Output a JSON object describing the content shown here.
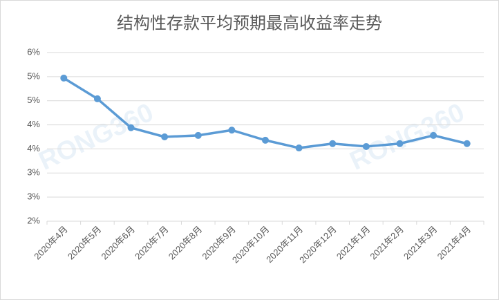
{
  "chart_data": {
    "type": "line",
    "title": "结构性存款平均预期最高收益率走势",
    "watermark": "RONG360",
    "categories": [
      "2020年4月",
      "2020年5月",
      "2020年6月",
      "2020年7月",
      "2020年8月",
      "2020年9月",
      "2020年10月",
      "2020年11月",
      "2020年12月",
      "2021年1月",
      "2021年2月",
      "2021年3月",
      "2021年4月"
    ],
    "series": [
      {
        "name": "结构性存款平均预期最高收益率",
        "color": "#5b9bd5",
        "values": [
          4.97,
          4.54,
          3.94,
          3.75,
          3.78,
          3.89,
          3.68,
          3.52,
          3.61,
          3.55,
          3.61,
          3.78,
          3.61
        ]
      }
    ],
    "ylim": [
      2,
      5.5
    ],
    "yticks": [
      {
        "value": 2,
        "label": "2%"
      },
      {
        "value": 2.5,
        "label": "3%"
      },
      {
        "value": 3,
        "label": "3%"
      },
      {
        "value": 3.5,
        "label": "4%"
      },
      {
        "value": 4,
        "label": "4%"
      },
      {
        "value": 4.5,
        "label": "5%"
      },
      {
        "value": 5,
        "label": "5%"
      },
      {
        "value": 5.5,
        "label": "6%"
      }
    ],
    "grid": true
  }
}
